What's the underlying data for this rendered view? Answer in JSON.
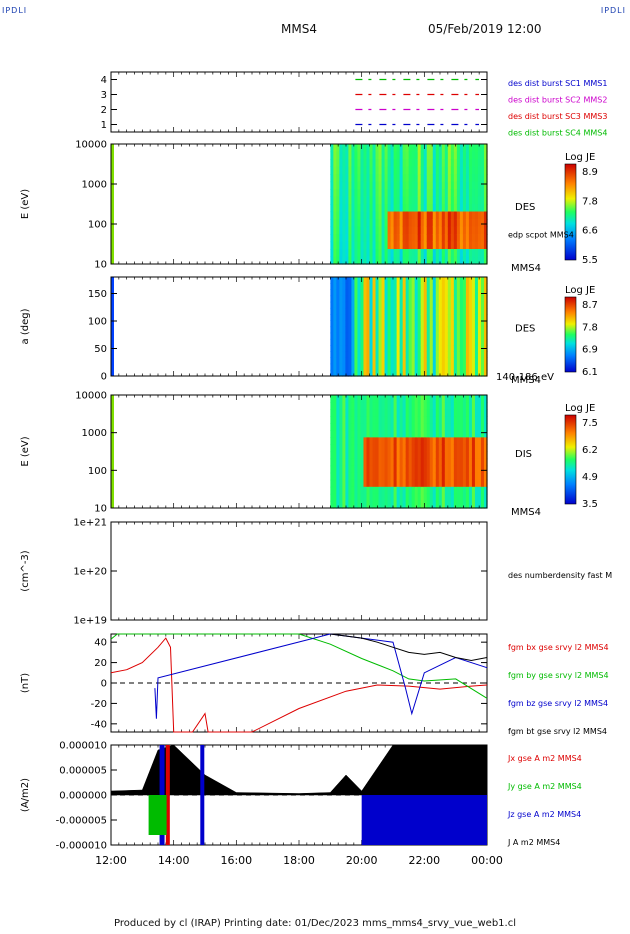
{
  "header": {
    "corner_label": "IPDLI",
    "spacecraft": "MMS4",
    "datetime": "05/Feb/2019 12:00"
  },
  "footer": {
    "text": "Produced by cl (IRAP)   Printing date: 01/Dec/2023   mms_mms4_srvy_vue_web1.cl"
  },
  "colors": {
    "mms1": "#0000cc",
    "mms2": "#cc00cc",
    "mms3": "#dd0000",
    "mms4": "#00bb00",
    "black": "#000000"
  },
  "chart_data": [
    {
      "type": "line",
      "name_key": "availability",
      "ylabel": "",
      "yticks": [
        "1",
        "2",
        "3",
        "4"
      ],
      "ylim": [
        0.5,
        4.5
      ],
      "legend": [
        {
          "label": "des dist burst SC1 MMS1",
          "color": "#0000cc"
        },
        {
          "label": "des dist burst SC2 MMS2",
          "color": "#cc00cc"
        },
        {
          "label": "des dist burst SC3 MMS3",
          "color": "#dd0000"
        },
        {
          "label": "des dist burst SC4 MMS4",
          "color": "#00bb00"
        }
      ],
      "series": [
        {
          "sc": 4,
          "values": [
            1
          ]
        },
        {
          "sc": 3,
          "values": [
            1
          ]
        },
        {
          "sc": 2,
          "values": [
            1
          ]
        },
        {
          "sc": 1,
          "values": [
            1
          ]
        }
      ],
      "data_start_hours": 19.8
    },
    {
      "type": "heatmap",
      "name_key": "des-energy",
      "ylabel": "E (eV)",
      "yticks": [
        "10",
        "100",
        "1000",
        "10000"
      ],
      "yscale": "log",
      "right_labels": [
        "DES",
        "MMS4"
      ],
      "overlay_label": "edp scpot MMS4",
      "colorbar": {
        "title": "Log JE",
        "ticks": [
          "8.9",
          "7.8",
          "6.6",
          "5.5"
        ]
      },
      "data_start_hours": 19.0
    },
    {
      "type": "heatmap",
      "name_key": "des-pitch",
      "ylabel": "a (deg)",
      "yticks": [
        "0",
        "50",
        "100",
        "150"
      ],
      "ylim": [
        0,
        180
      ],
      "right_labels": [
        "DES",
        "MMS4"
      ],
      "energy_range": "140-186 eV",
      "colorbar": {
        "title": "Log JE",
        "ticks": [
          "8.7",
          "7.8",
          "6.9",
          "6.1"
        ]
      },
      "data_start_hours": 19.0
    },
    {
      "type": "heatmap",
      "name_key": "dis-energy",
      "ylabel": "E (eV)",
      "yticks": [
        "10",
        "100",
        "1000",
        "10000"
      ],
      "yscale": "log",
      "right_labels": [
        "DIS",
        "MMS4"
      ],
      "colorbar": {
        "title": "Log JE",
        "ticks": [
          "7.5",
          "6.2",
          "4.9",
          "3.5"
        ]
      },
      "data_start_hours": 19.0
    },
    {
      "type": "line",
      "name_key": "density",
      "ylabel": "(cm^-3)",
      "yticks": [
        "1e+19",
        "1e+20",
        "1e+21"
      ],
      "yscale": "log",
      "legend": [
        {
          "label": "des numberdensity fast M",
          "color": "#000000"
        }
      ],
      "series": []
    },
    {
      "type": "line",
      "name_key": "bfield",
      "ylabel": "(nT)",
      "yticks": [
        "-40",
        "-20",
        "0",
        "20",
        "40"
      ],
      "ylim": [
        -48,
        48
      ],
      "legend": [
        {
          "label": "fgm bx gse srvy l2 MMS4",
          "color": "#dd0000"
        },
        {
          "label": "fgm by gse srvy l2 MMS4",
          "color": "#00bb00"
        },
        {
          "label": "fgm bz gse srvy l2 MMS4",
          "color": "#0000cc"
        },
        {
          "label": "fgm bt gse srvy l2 MMS4",
          "color": "#000000"
        }
      ],
      "series": [
        {
          "name": "bx",
          "x": [
            12.0,
            12.5,
            13.0,
            13.5,
            13.75,
            13.9,
            14.0,
            14.6,
            15.0,
            15.1,
            16.5,
            18.0,
            19.5,
            20.5,
            21.5,
            22.5,
            23.5,
            24.0
          ],
          "values": [
            10,
            13,
            20,
            35,
            44,
            35,
            -48,
            -48,
            -30,
            -48,
            -48,
            -25,
            -8,
            -2,
            -3,
            -6,
            -3,
            -2
          ]
        },
        {
          "name": "by",
          "x": [
            12.0,
            12.2,
            12.4,
            18.0,
            19.0,
            20.0,
            20.5,
            21.0,
            21.5,
            22.0,
            23.0,
            24.0
          ],
          "values": [
            43,
            48,
            48,
            48,
            38,
            24,
            18,
            12,
            4,
            2,
            4,
            -15
          ]
        },
        {
          "name": "bz",
          "x": [
            13.4,
            13.45,
            13.5,
            19.0,
            20.0,
            21.0,
            21.4,
            21.6,
            22.0,
            23.0,
            24.0
          ],
          "values": [
            -5,
            -35,
            5,
            48,
            44,
            40,
            -5,
            -30,
            10,
            25,
            15
          ]
        },
        {
          "name": "bt",
          "x": [
            19.0,
            20.0,
            20.5,
            21.0,
            21.5,
            22.0,
            22.5,
            23.0,
            23.5,
            24.0
          ],
          "values": [
            48,
            44,
            40,
            35,
            30,
            28,
            30,
            25,
            22,
            25
          ]
        }
      ]
    },
    {
      "type": "line",
      "name_key": "current",
      "ylabel": "(A/m2)",
      "yticks": [
        "0.000010",
        "0.000005",
        "0.000000",
        "-0.000005",
        "-0.000010"
      ],
      "ylim": [
        -1e-05,
        1e-05
      ],
      "legend": [
        {
          "label": "Jx gse A m2 MMS4",
          "color": "#dd0000"
        },
        {
          "label": "Jy gse A m2 MMS4",
          "color": "#00bb00"
        },
        {
          "label": "Jz gse A m2 MMS4",
          "color": "#0000cc"
        },
        {
          "label": "J A m2 MMS4",
          "color": "#000000"
        }
      ],
      "series": [
        {
          "name": "J",
          "x": [
            12.0,
            13.0,
            13.5,
            14.0,
            15.0,
            16.0,
            18.0,
            19.0,
            19.5,
            20.0,
            21.0,
            22.0,
            23.0,
            24.0
          ],
          "values": [
            8e-07,
            1e-06,
            9e-06,
            1e-05,
            4e-06,
            5e-07,
            3e-07,
            5e-07,
            4e-06,
            8e-07,
            1e-05,
            1e-05,
            1e-05,
            1e-05
          ]
        }
      ]
    }
  ],
  "xaxis": {
    "ticks": [
      "12:00",
      "14:00",
      "16:00",
      "18:00",
      "20:00",
      "22:00",
      "00:00"
    ],
    "range_hours": [
      12,
      24
    ]
  }
}
